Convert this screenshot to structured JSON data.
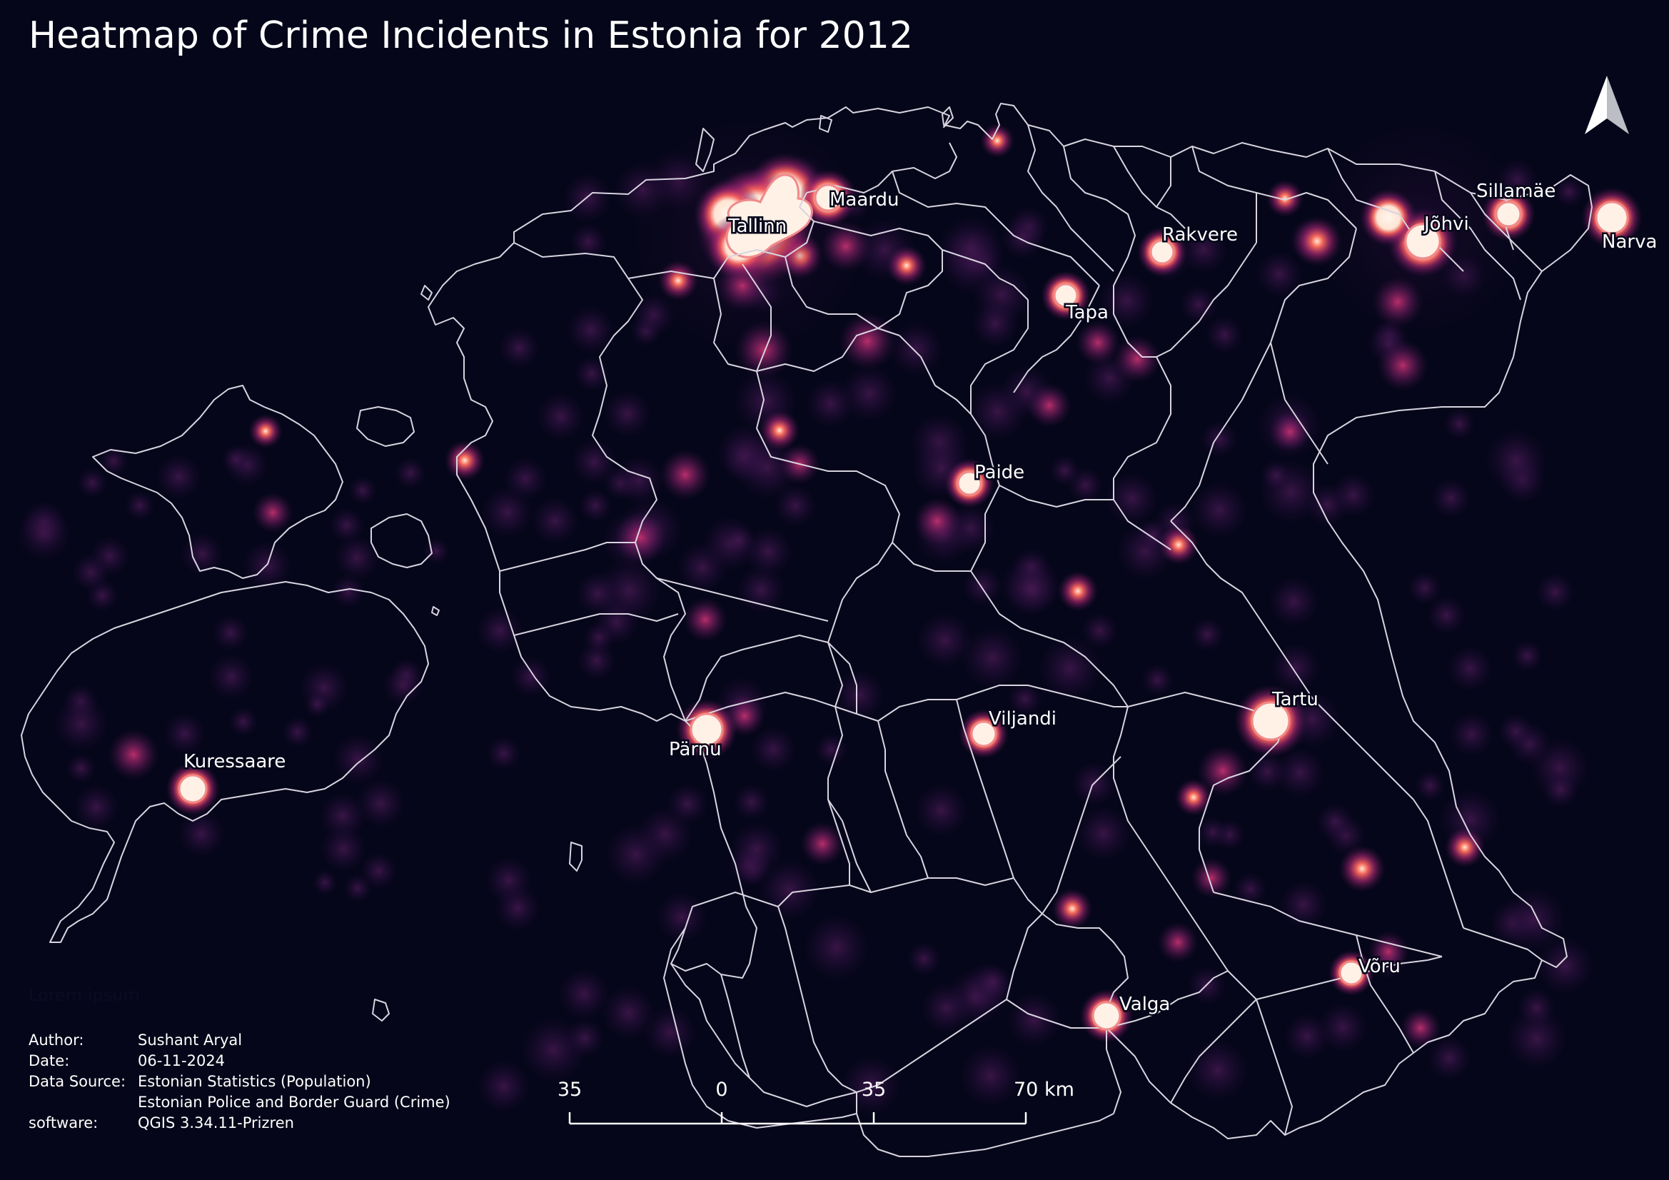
{
  "title": "Heatmap of Crime Incidents in Estonia for 2012",
  "placeholder_text": "Lorem ipsum",
  "colors": {
    "background": "#050619",
    "border": "#d8d4e0",
    "heat_low": "#3a1348",
    "heat_mid": "#a3256e",
    "heat_high": "#f5695a",
    "heat_peak": "#fff1e3"
  },
  "north_arrow_icon": "north-arrow-icon",
  "cities": [
    {
      "id": "tallinn",
      "name": "Tallinn"
    },
    {
      "id": "maardu",
      "name": "Maardu"
    },
    {
      "id": "rakvere",
      "name": "Rakvere"
    },
    {
      "id": "tapa",
      "name": "Tapa"
    },
    {
      "id": "johvi",
      "name": "Jõhvi"
    },
    {
      "id": "sillamae",
      "name": "Sillamäe"
    },
    {
      "id": "narva",
      "name": "Narva"
    },
    {
      "id": "paide",
      "name": "Paide"
    },
    {
      "id": "kuressaare",
      "name": "Kuressaare"
    },
    {
      "id": "parnu",
      "name": "Pärnu"
    },
    {
      "id": "viljandi",
      "name": "Viljandi"
    },
    {
      "id": "tartu",
      "name": "Tartu"
    },
    {
      "id": "voru",
      "name": "Võru"
    },
    {
      "id": "valga",
      "name": "Valga"
    }
  ],
  "scale_bar": {
    "labels": [
      "35",
      "0",
      "35",
      "70 km"
    ]
  },
  "info": {
    "author_key": "Author:",
    "author_val": "Sushant Aryal",
    "date_key": "Date:",
    "date_val": "06-11-2024",
    "source_key": "Data Source:",
    "source_val_1": "Estonian Statistics (Population)",
    "source_val_2": "Estonian Police and Border Guard (Crime)",
    "software_key": "software:",
    "software_val": "QGIS 3.34.11-Prizren"
  }
}
